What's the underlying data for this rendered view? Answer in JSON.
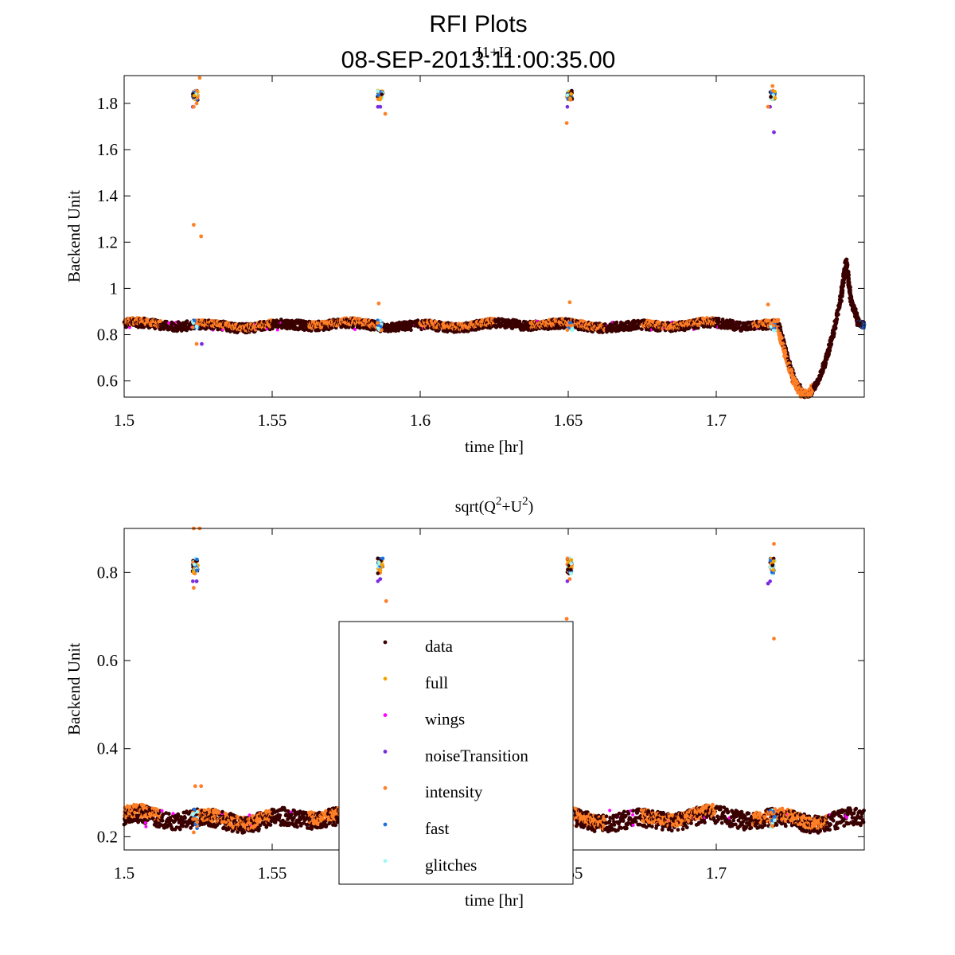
{
  "figure": {
    "title_line1": "RFI Plots",
    "title_line2": "08-SEP-2013:11:00:35.00"
  },
  "colors": {
    "data": "#3a0000",
    "full": "#f5a300",
    "wings": "#ff00ff",
    "noiseTransition": "#7b2be0",
    "intensity": "#ff7f27",
    "fast": "#1f6fe0",
    "glitches": "#9ff7f7"
  },
  "legend": {
    "entries": [
      "data",
      "full",
      "wings",
      "noiseTransition",
      "intensity",
      "fast",
      "glitches"
    ]
  },
  "chart_data": [
    {
      "type": "scatter",
      "title": "I1+I2",
      "xlabel": "time [hr]",
      "ylabel": "Backend Unit",
      "xlim": [
        1.5,
        1.75
      ],
      "ylim": [
        0.53,
        1.92
      ],
      "xticks": [
        1.5,
        1.55,
        1.6,
        1.65,
        1.7
      ],
      "xtick_labels": [
        "1.5",
        "1.55",
        "1.6",
        "1.65",
        "1.7"
      ],
      "yticks": [
        0.6,
        0.8,
        1.0,
        1.2,
        1.4,
        1.6,
        1.8
      ],
      "ytick_labels": [
        "0.6",
        "0.8",
        "1",
        "1.2",
        "1.4",
        "1.6",
        "1.8"
      ],
      "grid": false,
      "baseline": 0.84,
      "band_halfwidth": 0.02,
      "cal_times": [
        1.524,
        1.5865,
        1.6505,
        1.719
      ],
      "cal_level": 1.835,
      "outliers": [
        {
          "x": 1.5235,
          "y": 1.275
        },
        {
          "x": 1.526,
          "y": 1.225
        },
        {
          "x": 1.5245,
          "y": 0.76
        },
        {
          "x": 1.5262,
          "y": 0.76
        },
        {
          "x": 1.5255,
          "y": 1.91
        },
        {
          "x": 1.5235,
          "y": 1.785
        },
        {
          "x": 1.5245,
          "y": 1.8
        },
        {
          "x": 1.5882,
          "y": 1.755
        },
        {
          "x": 1.5865,
          "y": 1.785
        },
        {
          "x": 1.586,
          "y": 0.935
        },
        {
          "x": 1.6495,
          "y": 1.715
        },
        {
          "x": 1.6505,
          "y": 0.94
        },
        {
          "x": 1.719,
          "y": 1.875
        },
        {
          "x": 1.7195,
          "y": 1.675
        },
        {
          "x": 1.7175,
          "y": 1.785
        },
        {
          "x": 1.7175,
          "y": 0.93
        }
      ],
      "trend": [
        {
          "x": 1.721,
          "y": 0.84
        },
        {
          "x": 1.7235,
          "y": 0.72
        },
        {
          "x": 1.7265,
          "y": 0.6
        },
        {
          "x": 1.729,
          "y": 0.55
        },
        {
          "x": 1.731,
          "y": 0.535
        },
        {
          "x": 1.7345,
          "y": 0.6
        },
        {
          "x": 1.738,
          "y": 0.73
        },
        {
          "x": 1.742,
          "y": 0.95
        },
        {
          "x": 1.7438,
          "y": 1.115
        },
        {
          "x": 1.7455,
          "y": 0.95
        },
        {
          "x": 1.748,
          "y": 0.85
        },
        {
          "x": 1.75,
          "y": 0.84
        }
      ]
    },
    {
      "type": "scatter",
      "title": "sqrt(Q2+U2)",
      "title_parts": [
        "sqrt(Q",
        "2",
        "+U",
        "2",
        ")"
      ],
      "xlabel": "time [hr]",
      "ylabel": "Backend Unit",
      "xlim": [
        1.5,
        1.75
      ],
      "ylim": [
        0.17,
        0.9
      ],
      "xticks": [
        1.5,
        1.55,
        1.6,
        1.65,
        1.7
      ],
      "xtick_labels": [
        "1.5",
        "1.55",
        "1.6",
        "1.65",
        "1.7"
      ],
      "yticks": [
        0.2,
        0.4,
        0.6,
        0.8
      ],
      "ytick_labels": [
        "0.2",
        "0.4",
        "0.6",
        "0.8"
      ],
      "grid": false,
      "baseline": 0.24,
      "band_halfwidth": 0.02,
      "cal_times": [
        1.524,
        1.5865,
        1.6505,
        1.719
      ],
      "cal_level": 0.815,
      "outliers": [
        {
          "x": 1.5235,
          "y": 0.9
        },
        {
          "x": 1.5255,
          "y": 0.9
        },
        {
          "x": 1.5235,
          "y": 0.765
        },
        {
          "x": 1.5245,
          "y": 0.78
        },
        {
          "x": 1.524,
          "y": 0.315
        },
        {
          "x": 1.526,
          "y": 0.315
        },
        {
          "x": 1.5235,
          "y": 0.21
        },
        {
          "x": 1.5885,
          "y": 0.735
        },
        {
          "x": 1.5865,
          "y": 0.785
        },
        {
          "x": 1.6495,
          "y": 0.695
        },
        {
          "x": 1.6505,
          "y": 0.785
        },
        {
          "x": 1.7195,
          "y": 0.865
        },
        {
          "x": 1.7195,
          "y": 0.65
        },
        {
          "x": 1.7175,
          "y": 0.775
        },
        {
          "x": 1.7168,
          "y": 0.165
        }
      ]
    }
  ]
}
